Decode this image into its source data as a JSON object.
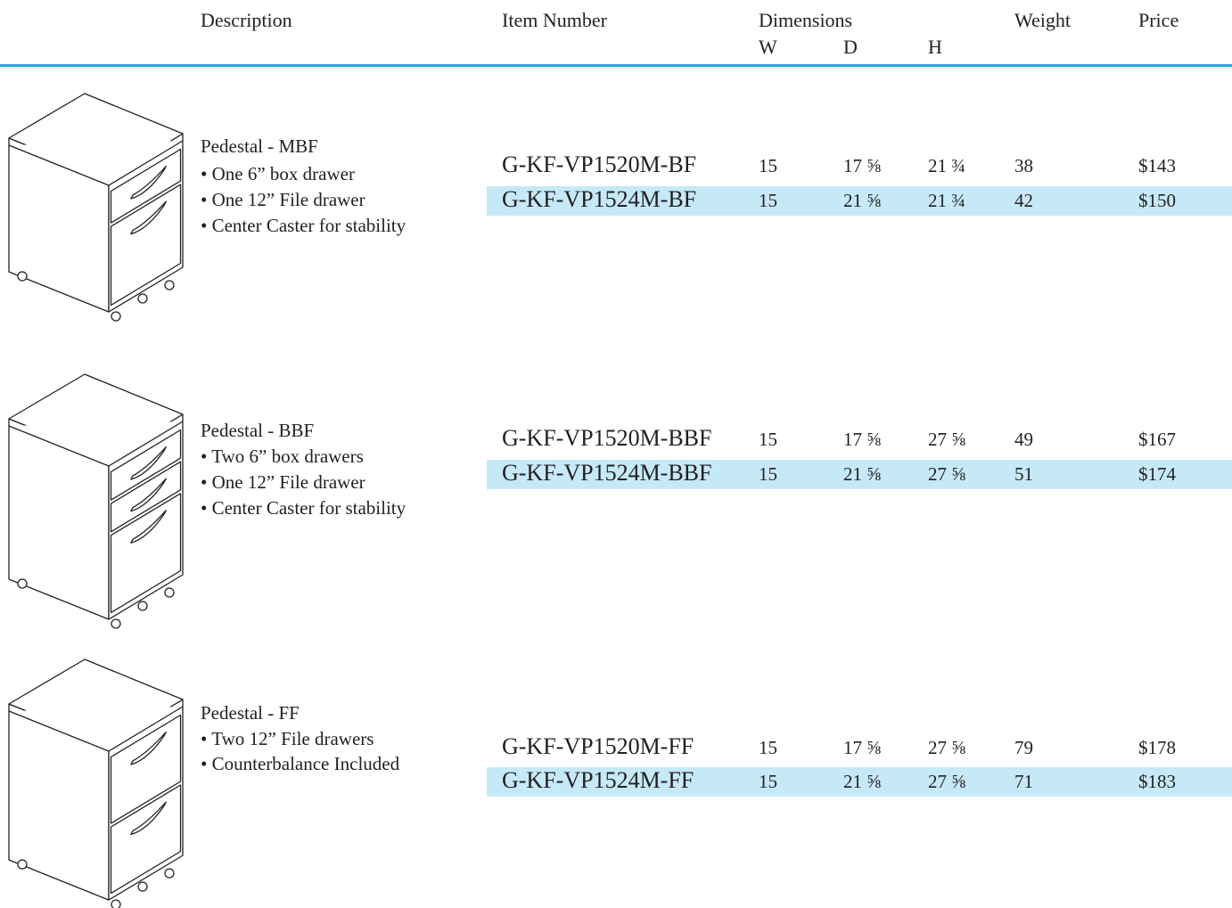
{
  "header": {
    "description": "Description",
    "item_number": "Item Number",
    "dimensions": "Dimensions",
    "w": "W",
    "d": "D",
    "h": "H",
    "weight": "Weight",
    "price": "Price"
  },
  "products": [
    {
      "name": "Pedestal - MBF",
      "features": [
        "• One 6” box drawer",
        "• One 12” File drawer",
        "• Center Caster for stability"
      ],
      "rows": [
        [
          "G-KF-VP1520M-BF",
          "15",
          "17 ⅝",
          "21 ¾",
          "38",
          "$143"
        ],
        [
          "G-KF-VP1524M-BF",
          "15",
          "21 ⅝",
          "21 ¾",
          "42",
          "$150"
        ]
      ]
    },
    {
      "name": "Pedestal - BBF",
      "features": [
        "• Two 6” box drawers",
        "• One 12” File drawer",
        "• Center Caster for stability"
      ],
      "rows": [
        [
          "G-KF-VP1520M-BBF",
          "15",
          "17 ⅝",
          "27 ⅝",
          "49",
          "$167"
        ],
        [
          "G-KF-VP1524M-BBF",
          "15",
          "21 ⅝",
          "27 ⅝",
          "51",
          "$174"
        ]
      ]
    },
    {
      "name": "Pedestal - FF",
      "features": [
        "• Two 12” File drawers",
        "• Counterbalance Included"
      ],
      "rows": [
        [
          "G-KF-VP1520M-FF",
          "15",
          "17 ⅝",
          "27 ⅝",
          "79",
          "$178"
        ],
        [
          "G-KF-VP1524M-FF",
          "15",
          "21 ⅝",
          "27 ⅝",
          "71",
          "$183"
        ]
      ]
    }
  ]
}
